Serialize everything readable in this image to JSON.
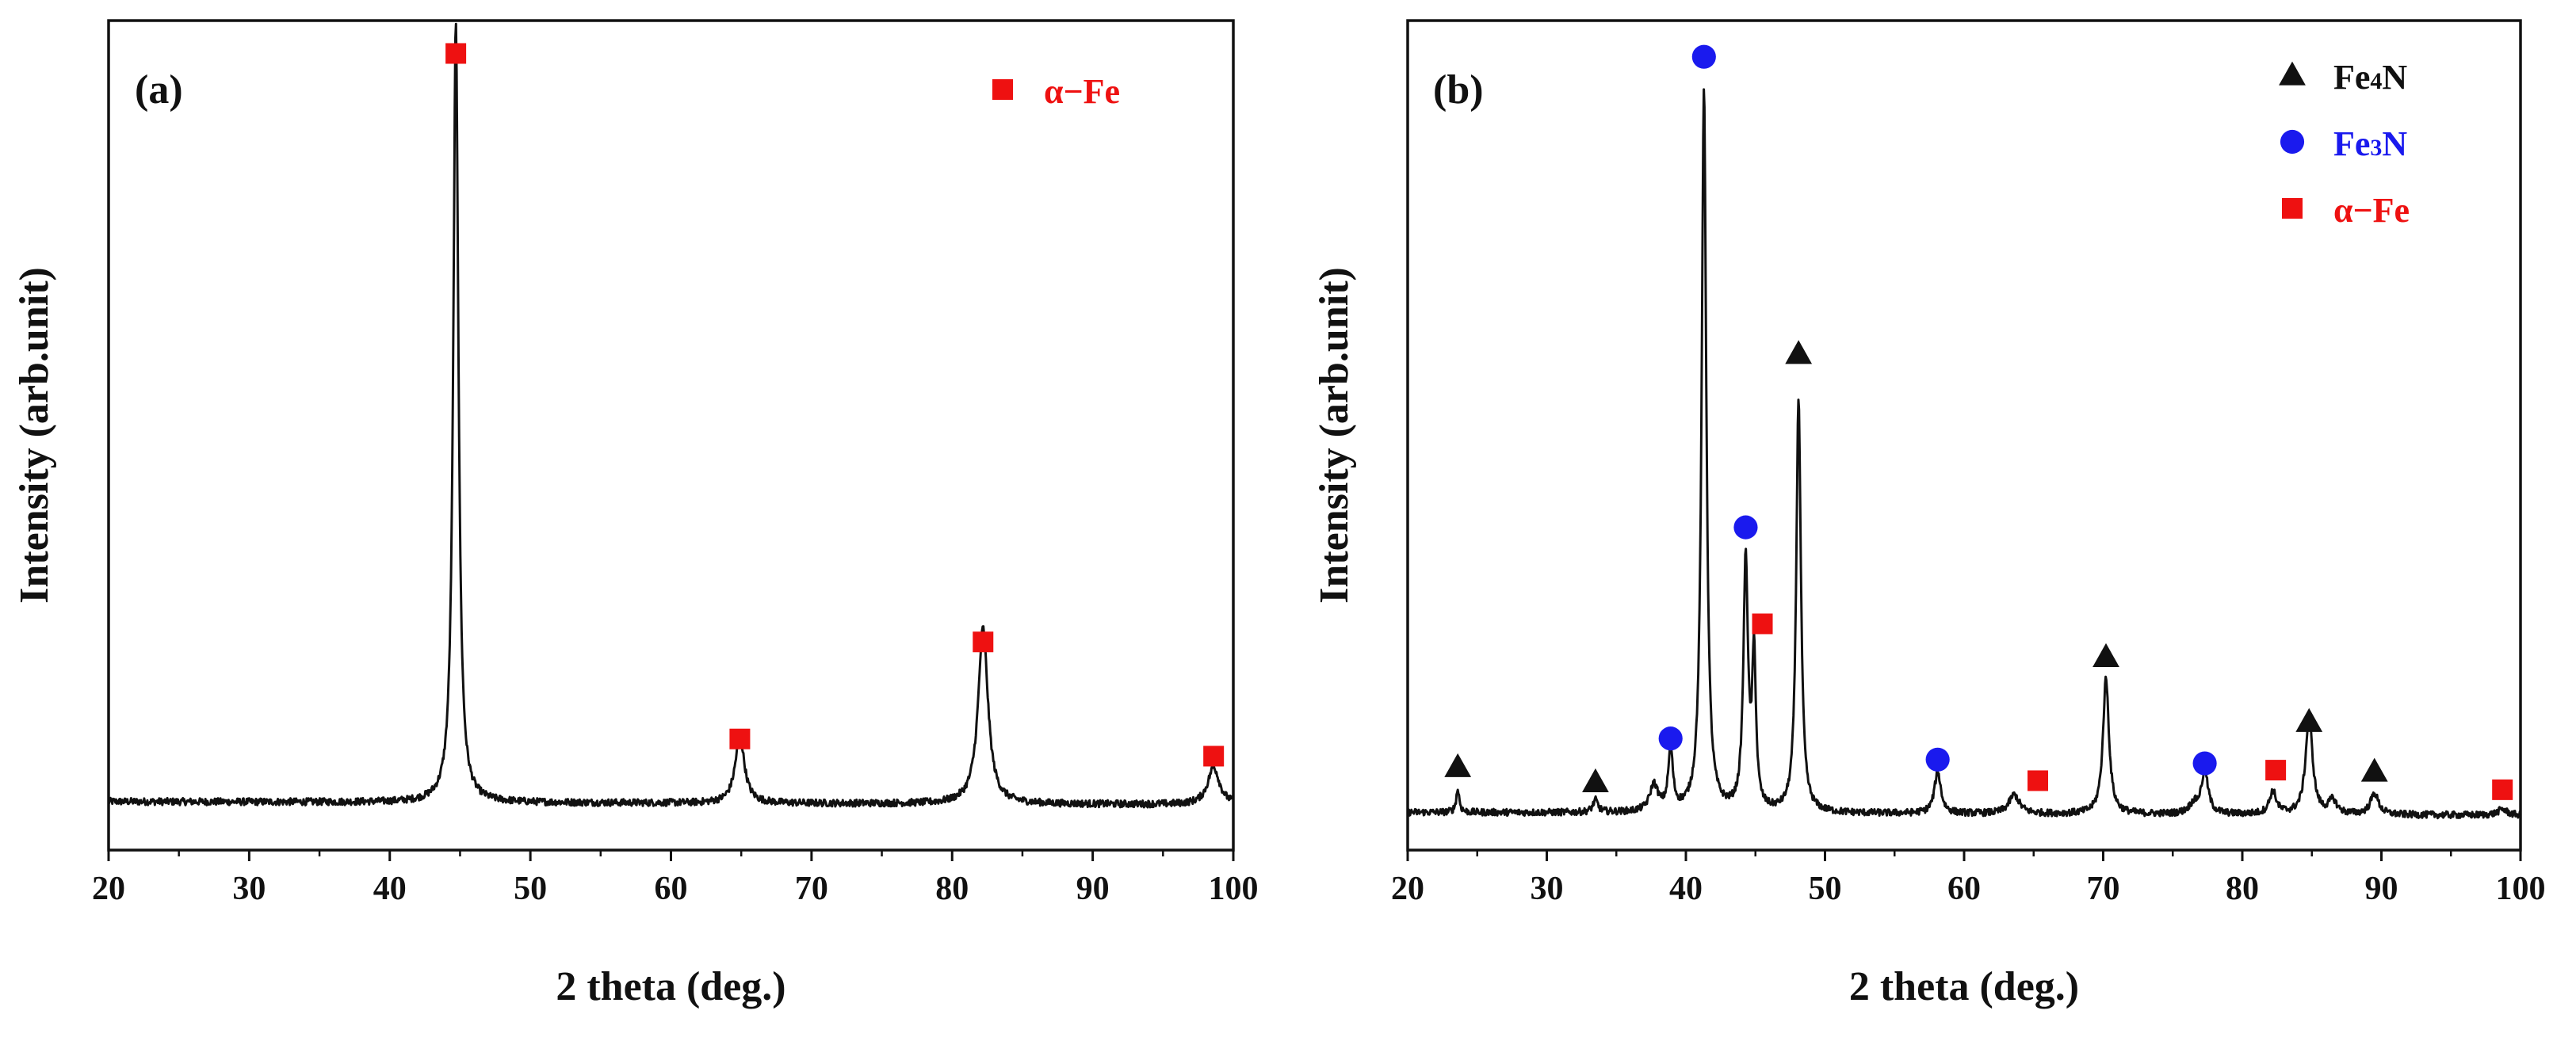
{
  "colors": {
    "axis": "#111111",
    "line": "#111111",
    "alpha_fe": "#ee1111",
    "fe3n": "#1a1aee",
    "fe4n": "#111111"
  },
  "chart_data": [
    {
      "panel_label": "(a)",
      "type": "line",
      "xlabel": "2 theta (deg.)",
      "ylabel": "Intensity (arb.unit)",
      "xlim": [
        20,
        100
      ],
      "ylim": [
        0,
        1.06
      ],
      "xticks": [
        "20",
        "30",
        "40",
        "50",
        "60",
        "70",
        "80",
        "90",
        "100"
      ],
      "baseline": 0.062,
      "peaks": [
        {
          "x": 44.7,
          "height": 0.995,
          "width": 0.22
        },
        {
          "x": 64.9,
          "height": 0.085,
          "width": 0.4
        },
        {
          "x": 82.2,
          "height": 0.225,
          "width": 0.42
        },
        {
          "x": 98.6,
          "height": 0.048,
          "width": 0.5
        }
      ],
      "markers": [
        {
          "phase": "α−Fe",
          "shape": "square",
          "x": 44.7,
          "y": 1.018
        },
        {
          "phase": "α−Fe",
          "shape": "square",
          "x": 64.9,
          "y": 0.142
        },
        {
          "phase": "α−Fe",
          "shape": "square",
          "x": 82.2,
          "y": 0.266
        },
        {
          "phase": "α−Fe",
          "shape": "square",
          "x": 98.6,
          "y": 0.12
        }
      ],
      "legend": [
        {
          "shape": "square",
          "label": "α−Fe",
          "color": "#ee1111"
        }
      ]
    },
    {
      "panel_label": "(b)",
      "type": "line",
      "xlabel": "2 theta (deg.)",
      "ylabel": "Intensity (arb.unit)",
      "xlim": [
        20,
        100
      ],
      "ylim": [
        0,
        1.1
      ],
      "xticks": [
        "20",
        "30",
        "40",
        "50",
        "60",
        "70",
        "80",
        "90",
        "100"
      ],
      "baseline": 0.05,
      "peaks": [
        {
          "x": 23.6,
          "height": 0.03,
          "width": 0.14
        },
        {
          "x": 33.5,
          "height": 0.016,
          "width": 0.22
        },
        {
          "x": 37.7,
          "height": 0.035,
          "width": 0.35
        },
        {
          "x": 38.9,
          "height": 0.08,
          "width": 0.2
        },
        {
          "x": 41.3,
          "height": 0.96,
          "width": 0.2
        },
        {
          "x": 44.3,
          "height": 0.33,
          "width": 0.2
        },
        {
          "x": 44.9,
          "height": 0.2,
          "width": 0.16
        },
        {
          "x": 48.1,
          "height": 0.55,
          "width": 0.2
        },
        {
          "x": 58.1,
          "height": 0.055,
          "width": 0.28
        },
        {
          "x": 63.6,
          "height": 0.025,
          "width": 0.45
        },
        {
          "x": 70.2,
          "height": 0.18,
          "width": 0.26
        },
        {
          "x": 76.5,
          "height": 0.012,
          "width": 0.4
        },
        {
          "x": 77.3,
          "height": 0.055,
          "width": 0.3
        },
        {
          "x": 82.2,
          "height": 0.03,
          "width": 0.3
        },
        {
          "x": 84.8,
          "height": 0.13,
          "width": 0.3
        },
        {
          "x": 86.5,
          "height": 0.018,
          "width": 0.35
        },
        {
          "x": 89.5,
          "height": 0.028,
          "width": 0.35
        },
        {
          "x": 98.7,
          "height": 0.008,
          "width": 0.4
        }
      ],
      "markers": [
        {
          "phase": "Fe4N",
          "shape": "triangle",
          "x": 23.6,
          "y": 0.11
        },
        {
          "phase": "Fe4N",
          "shape": "triangle",
          "x": 33.5,
          "y": 0.09
        },
        {
          "phase": "Fe3N",
          "shape": "circle",
          "x": 38.9,
          "y": 0.148
        },
        {
          "phase": "Fe3N",
          "shape": "circle",
          "x": 41.3,
          "y": 1.052
        },
        {
          "phase": "Fe3N",
          "shape": "circle",
          "x": 44.3,
          "y": 0.428
        },
        {
          "phase": "α−Fe",
          "shape": "square",
          "x": 45.5,
          "y": 0.3
        },
        {
          "phase": "Fe4N",
          "shape": "triangle",
          "x": 48.1,
          "y": 0.658
        },
        {
          "phase": "Fe3N",
          "shape": "circle",
          "x": 58.1,
          "y": 0.12
        },
        {
          "phase": "α−Fe",
          "shape": "square",
          "x": 65.3,
          "y": 0.092
        },
        {
          "phase": "Fe4N",
          "shape": "triangle",
          "x": 70.2,
          "y": 0.256
        },
        {
          "phase": "Fe3N",
          "shape": "circle",
          "x": 77.3,
          "y": 0.115
        },
        {
          "phase": "α−Fe",
          "shape": "square",
          "x": 82.4,
          "y": 0.106
        },
        {
          "phase": "Fe4N",
          "shape": "triangle",
          "x": 84.8,
          "y": 0.17
        },
        {
          "phase": "Fe4N",
          "shape": "triangle",
          "x": 89.5,
          "y": 0.104
        },
        {
          "phase": "α−Fe",
          "shape": "square",
          "x": 98.7,
          "y": 0.08
        }
      ],
      "legend": [
        {
          "shape": "triangle",
          "label_main": "Fe",
          "label_sub": "4",
          "label_tail": "N",
          "color": "#111111"
        },
        {
          "shape": "circle",
          "label_main": "Fe",
          "label_sub": "3",
          "label_tail": "N",
          "color": "#1a1aee"
        },
        {
          "shape": "square",
          "label_main": "α−Fe",
          "label_sub": "",
          "label_tail": "",
          "color": "#ee1111"
        }
      ]
    }
  ]
}
